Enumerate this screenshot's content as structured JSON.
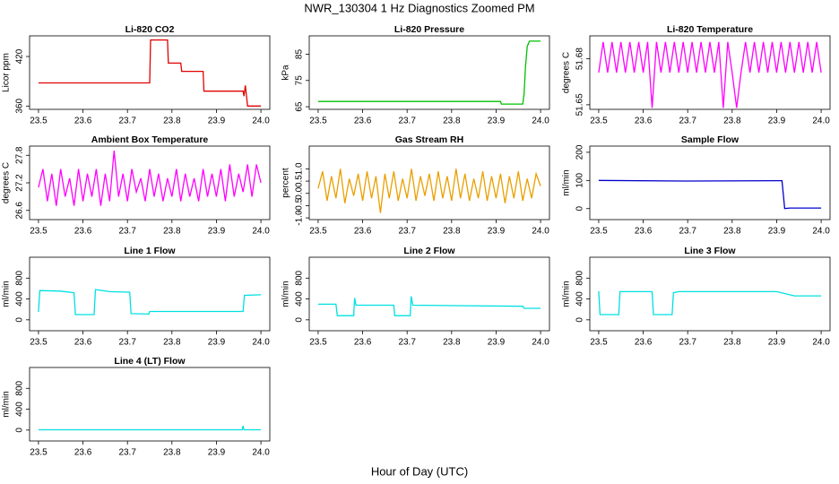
{
  "title": "NWR_130304  1 Hz Diagnostics Zoomed PM",
  "x_label": "Hour of Day (UTC)",
  "chart_data": [
    {
      "type": "line",
      "title": "Li-820 CO2",
      "y_label": "Licor ppm",
      "color": "#e00000",
      "x": [
        23.5,
        23.75,
        23.752,
        23.79,
        23.792,
        23.82,
        23.822,
        23.87,
        23.872,
        23.96,
        23.962,
        23.965,
        23.97,
        24.0
      ],
      "values": [
        388,
        388,
        440,
        440,
        412,
        412,
        402,
        402,
        378,
        378,
        372,
        385,
        360,
        360
      ],
      "xlim": [
        23.48,
        24.02
      ],
      "ylim": [
        356,
        445
      ],
      "xticks": [
        23.5,
        23.6,
        23.7,
        23.8,
        23.9,
        {
          "value": 24,
          "label": "24.0"
        }
      ],
      "yticks": [
        360,
        420
      ]
    },
    {
      "type": "line",
      "title": "Li-820 Pressure",
      "y_label": "kPa",
      "color": "#00c000",
      "x": [
        23.5,
        23.91,
        23.912,
        23.96,
        23.963,
        23.966,
        23.97,
        23.975,
        24.0
      ],
      "values": [
        67,
        67,
        66,
        66,
        70,
        80,
        88,
        90,
        90
      ],
      "xlim": [
        23.48,
        24.02
      ],
      "ylim": [
        64,
        92
      ],
      "xticks": [
        23.5,
        23.6,
        23.7,
        23.8,
        23.9,
        {
          "value": 24,
          "label": "24.0"
        }
      ],
      "yticks": [
        65,
        75,
        85
      ]
    },
    {
      "type": "line",
      "title": "Li-820 Temperature",
      "y_label": "degrees C",
      "color": "#ff00ff",
      "x": [
        23.5,
        23.51,
        23.52,
        23.53,
        23.54,
        23.55,
        23.56,
        23.57,
        23.58,
        23.59,
        23.6,
        23.61,
        23.62,
        23.63,
        23.64,
        23.65,
        23.66,
        23.67,
        23.68,
        23.69,
        23.7,
        23.71,
        23.72,
        23.73,
        23.74,
        23.75,
        23.76,
        23.77,
        23.78,
        23.79,
        23.8,
        23.81,
        23.82,
        23.83,
        23.84,
        23.85,
        23.86,
        23.87,
        23.88,
        23.89,
        23.9,
        23.91,
        23.92,
        23.93,
        23.94,
        23.95,
        23.96,
        23.97,
        23.98,
        23.99,
        24.0
      ],
      "values": [
        51.671,
        51.691,
        51.671,
        51.691,
        51.671,
        51.691,
        51.671,
        51.691,
        51.671,
        51.691,
        51.671,
        51.691,
        51.648,
        51.691,
        51.671,
        51.691,
        51.671,
        51.691,
        51.671,
        51.691,
        51.671,
        51.691,
        51.671,
        51.691,
        51.671,
        51.691,
        51.671,
        51.691,
        51.648,
        51.691,
        51.671,
        51.648,
        51.671,
        51.691,
        51.671,
        51.691,
        51.671,
        51.691,
        51.671,
        51.691,
        51.671,
        51.691,
        51.671,
        51.691,
        51.671,
        51.691,
        51.671,
        51.691,
        51.671,
        51.691,
        51.671
      ],
      "xlim": [
        23.48,
        24.02
      ],
      "ylim": [
        51.647,
        51.695
      ],
      "xticks": [
        23.5,
        23.6,
        23.7,
        23.8,
        23.9,
        {
          "value": 24,
          "label": "24.0"
        }
      ],
      "yticks": [
        51.65,
        51.68
      ]
    },
    {
      "type": "line",
      "title": "Ambient Box Temperature",
      "y_label": "degrees C",
      "color": "#ff00ff",
      "x": [
        23.5,
        23.51,
        23.52,
        23.53,
        23.54,
        23.55,
        23.56,
        23.57,
        23.58,
        23.59,
        23.6,
        23.61,
        23.62,
        23.63,
        23.64,
        23.65,
        23.66,
        23.67,
        23.68,
        23.69,
        23.7,
        23.71,
        23.72,
        23.73,
        23.74,
        23.75,
        23.76,
        23.77,
        23.78,
        23.79,
        23.8,
        23.81,
        23.82,
        23.83,
        23.84,
        23.85,
        23.86,
        23.87,
        23.88,
        23.89,
        23.9,
        23.91,
        23.92,
        23.93,
        23.94,
        23.95,
        23.96,
        23.97,
        23.98,
        23.99,
        24.0
      ],
      "values": [
        27.1,
        27.5,
        26.8,
        27.4,
        26.7,
        27.5,
        26.9,
        27.3,
        26.7,
        27.5,
        26.8,
        27.4,
        26.9,
        27.5,
        26.7,
        27.4,
        26.8,
        27.9,
        26.9,
        27.4,
        26.8,
        27.5,
        27.0,
        27.3,
        26.8,
        27.5,
        26.9,
        27.4,
        26.8,
        27.3,
        26.9,
        27.5,
        26.8,
        27.4,
        26.9,
        27.3,
        26.8,
        27.5,
        26.9,
        27.4,
        26.9,
        27.5,
        26.8,
        27.6,
        26.9,
        27.4,
        27.0,
        27.6,
        26.9,
        27.6,
        27.2
      ],
      "xlim": [
        23.48,
        24.02
      ],
      "ylim": [
        26.4,
        28.0
      ],
      "xticks": [
        23.5,
        23.6,
        23.7,
        23.8,
        23.9,
        {
          "value": 24,
          "label": "24.0"
        }
      ],
      "yticks": [
        26.6,
        27.2,
        27.8
      ]
    },
    {
      "type": "line",
      "title": "Gas Stream RH",
      "y_label": "percent",
      "color": "#e8a000",
      "x": [
        23.5,
        23.51,
        23.52,
        23.53,
        23.54,
        23.55,
        23.56,
        23.57,
        23.58,
        23.59,
        23.6,
        23.61,
        23.62,
        23.63,
        23.64,
        23.65,
        23.66,
        23.67,
        23.68,
        23.69,
        23.7,
        23.71,
        23.72,
        23.73,
        23.74,
        23.75,
        23.76,
        23.77,
        23.78,
        23.79,
        23.8,
        23.81,
        23.82,
        23.83,
        23.84,
        23.85,
        23.86,
        23.87,
        23.88,
        23.89,
        23.9,
        23.91,
        23.92,
        23.93,
        23.94,
        23.95,
        23.96,
        23.97,
        23.98,
        23.99,
        24.0
      ],
      "values": [
        0.2,
        0.9,
        -0.3,
        0.7,
        -0.2,
        1.0,
        -0.4,
        0.6,
        -0.1,
        0.8,
        -0.3,
        0.9,
        -0.2,
        0.7,
        -0.8,
        0.8,
        -0.2,
        0.9,
        -0.3,
        0.6,
        -0.2,
        1.0,
        -0.3,
        0.7,
        -0.1,
        0.8,
        -0.3,
        0.9,
        -0.2,
        0.7,
        -0.3,
        1.0,
        -0.2,
        0.8,
        -0.3,
        0.6,
        -0.2,
        0.9,
        -0.3,
        0.7,
        -0.2,
        0.8,
        -0.4,
        0.7,
        -0.2,
        0.9,
        -0.3,
        0.6,
        -0.2,
        0.8,
        0.3
      ],
      "xlim": [
        23.48,
        24.02
      ],
      "ylim": [
        -1.07,
        1.93
      ],
      "xticks": [
        23.5,
        23.6,
        23.7,
        23.8,
        23.9,
        {
          "value": 24,
          "label": "24.0"
        }
      ],
      "yticks": [
        {
          "value": -1,
          "label": "-1.0"
        },
        -0.5,
        {
          "value": 0,
          "label": "0.0"
        },
        0.5,
        {
          "value": 1,
          "label": "1.0"
        }
      ]
    },
    {
      "type": "line",
      "title": "Sample Flow",
      "y_label": "ml/min",
      "color": "#0000cc",
      "x": [
        23.5,
        23.7,
        23.9,
        23.912,
        23.918,
        23.93,
        24.0
      ],
      "values": [
        100,
        98,
        99,
        99,
        0,
        2,
        2
      ],
      "xlim": [
        23.48,
        24.02
      ],
      "ylim": [
        -39,
        222
      ],
      "xticks": [
        23.5,
        23.6,
        23.7,
        23.8,
        23.9,
        {
          "value": 24,
          "label": "24.0"
        }
      ],
      "yticks": [
        0,
        100,
        200
      ]
    },
    {
      "type": "line",
      "title": "Line 1 Flow",
      "y_label": "ml/min",
      "color": "#00e0e0",
      "x": [
        23.5,
        23.503,
        23.55,
        23.58,
        23.583,
        23.625,
        23.628,
        23.66,
        23.705,
        23.708,
        23.748,
        23.75,
        23.96,
        23.963,
        24.0
      ],
      "values": [
        150,
        560,
        550,
        520,
        100,
        100,
        580,
        540,
        530,
        120,
        110,
        160,
        160,
        470,
        480
      ],
      "xlim": [
        23.48,
        24.02
      ],
      "ylim": [
        -209,
        1200
      ],
      "xticks": [
        23.5,
        23.6,
        23.7,
        23.8,
        23.9,
        {
          "value": 24,
          "label": "24.0"
        }
      ],
      "yticks": [
        0,
        400,
        800
      ]
    },
    {
      "type": "line",
      "title": "Line 2 Flow",
      "y_label": "ml/min",
      "color": "#00e0e0",
      "x": [
        23.5,
        23.54,
        23.543,
        23.58,
        23.582,
        23.585,
        23.67,
        23.672,
        23.707,
        23.709,
        23.713,
        23.96,
        23.963,
        24.0
      ],
      "values": [
        300,
        300,
        80,
        80,
        420,
        280,
        280,
        80,
        80,
        450,
        280,
        260,
        220,
        220
      ],
      "xlim": [
        23.48,
        24.02
      ],
      "ylim": [
        -209,
        1200
      ],
      "xticks": [
        23.5,
        23.6,
        23.7,
        23.8,
        23.9,
        {
          "value": 24,
          "label": "24.0"
        }
      ],
      "yticks": [
        0,
        400,
        800
      ]
    },
    {
      "type": "line",
      "title": "Line 3 Flow",
      "y_label": "ml/min",
      "color": "#00e0e0",
      "x": [
        23.5,
        23.503,
        23.545,
        23.548,
        23.62,
        23.623,
        23.665,
        23.668,
        23.68,
        23.9,
        23.92,
        23.94,
        24.0
      ],
      "values": [
        550,
        100,
        100,
        540,
        540,
        100,
        100,
        520,
        540,
        540,
        500,
        460,
        460
      ],
      "xlim": [
        23.48,
        24.02
      ],
      "ylim": [
        -209,
        1200
      ],
      "xticks": [
        23.5,
        23.6,
        23.7,
        23.8,
        23.9,
        {
          "value": 24,
          "label": "24.0"
        }
      ],
      "yticks": [
        0,
        400,
        800
      ]
    },
    {
      "type": "line",
      "title": "Line 4 (LT) Flow",
      "y_label": "ml/min",
      "color": "#00e0e0",
      "x": [
        23.5,
        23.958,
        23.96,
        23.962,
        24.0
      ],
      "values": [
        5,
        5,
        80,
        5,
        5
      ],
      "xlim": [
        23.48,
        24.02
      ],
      "ylim": [
        -209,
        1200
      ],
      "xticks": [
        23.5,
        23.6,
        23.7,
        23.8,
        23.9,
        {
          "value": 24,
          "label": "24.0"
        }
      ],
      "yticks": [
        0,
        400,
        800
      ]
    }
  ]
}
